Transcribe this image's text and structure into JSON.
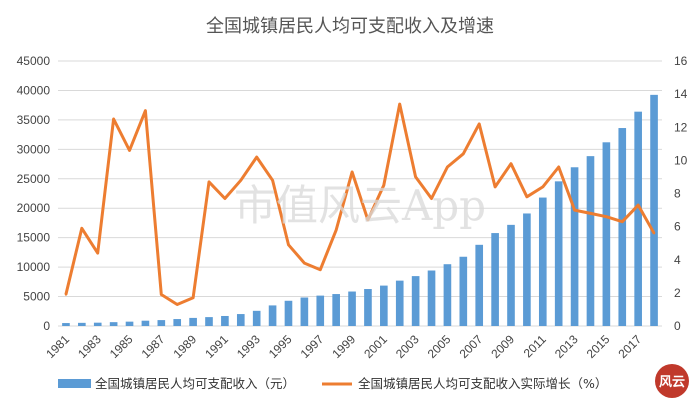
{
  "chart_data": {
    "type": "bar+line",
    "title": "全国城镇居民人均可支配收入及增速",
    "years": [
      "1981",
      "1982",
      "1983",
      "1984",
      "1985",
      "1986",
      "1987",
      "1988",
      "1989",
      "1990",
      "1991",
      "1992",
      "1993",
      "1994",
      "1995",
      "1996",
      "1997",
      "1998",
      "1999",
      "2000",
      "2001",
      "2002",
      "2003",
      "2004",
      "2005",
      "2006",
      "2007",
      "2008",
      "2009",
      "2010",
      "2011",
      "2012",
      "2013",
      "2014",
      "2015",
      "2016",
      "2017",
      "2018"
    ],
    "x_tick_labels": [
      "1981",
      "1983",
      "1985",
      "1987",
      "1989",
      "1991",
      "1993",
      "1995",
      "1997",
      "1999",
      "2001",
      "2003",
      "2005",
      "2007",
      "2009",
      "2011",
      "2013",
      "2015",
      "2017"
    ],
    "series": [
      {
        "name": "全国城镇居民人均可支配收入（元）",
        "type": "bar",
        "axis": "left",
        "color": "#5b9bd5",
        "values": [
          500,
          535,
          564,
          652,
          739,
          900,
          1002,
          1180,
          1374,
          1510,
          1701,
          2027,
          2577,
          3496,
          4283,
          4839,
          5160,
          5425,
          5854,
          6280,
          6860,
          7703,
          8472,
          9422,
          10493,
          11759,
          13786,
          15781,
          17175,
          19109,
          21810,
          24565,
          26955,
          28844,
          31195,
          33616,
          36396,
          39251
        ]
      },
      {
        "name": "全国城镇居民人均可支配收入实际增长（%）",
        "type": "line",
        "axis": "right",
        "color": "#ed7d31",
        "values": [
          1.9,
          5.9,
          4.4,
          12.5,
          10.6,
          13.0,
          1.9,
          1.3,
          1.7,
          8.7,
          7.7,
          8.8,
          10.2,
          8.8,
          4.9,
          3.8,
          3.4,
          5.8,
          9.3,
          6.4,
          8.5,
          13.4,
          9.0,
          7.7,
          9.6,
          10.4,
          12.2,
          8.4,
          9.8,
          7.8,
          8.4,
          9.6,
          7.0,
          6.8,
          6.6,
          6.3,
          7.3,
          5.6
        ]
      }
    ],
    "y_left": {
      "min": 0,
      "max": 45000,
      "ticks": [
        "0",
        "5000",
        "10000",
        "15000",
        "20000",
        "25000",
        "30000",
        "35000",
        "40000",
        "45000"
      ]
    },
    "y_right": {
      "min": 0,
      "max": 16,
      "ticks": [
        "0",
        "2",
        "4",
        "6",
        "8",
        "10",
        "12",
        "14",
        "16"
      ]
    },
    "grid": true,
    "legend_position": "bottom",
    "watermark": "市值风云App",
    "seal": "风云"
  }
}
